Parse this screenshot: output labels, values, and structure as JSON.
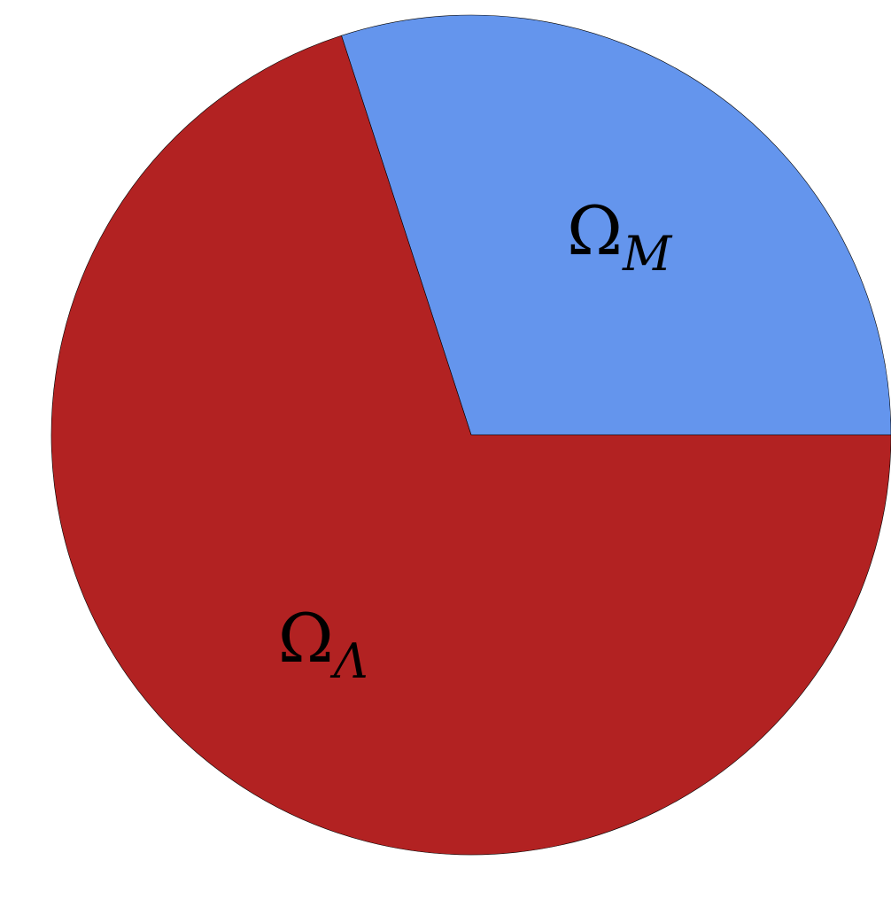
{
  "chart_data": {
    "type": "pie",
    "start_angle_deg": 0,
    "direction": "counterclockwise",
    "slices": [
      {
        "symbol": "Ω",
        "subscript": "M",
        "value": 0.3,
        "color": "#6495ED"
      },
      {
        "symbol": "Ω",
        "subscript": "Λ",
        "value": 0.7,
        "color": "#B22222"
      }
    ],
    "edge_color": "#000000",
    "title": "",
    "legend": "none"
  }
}
